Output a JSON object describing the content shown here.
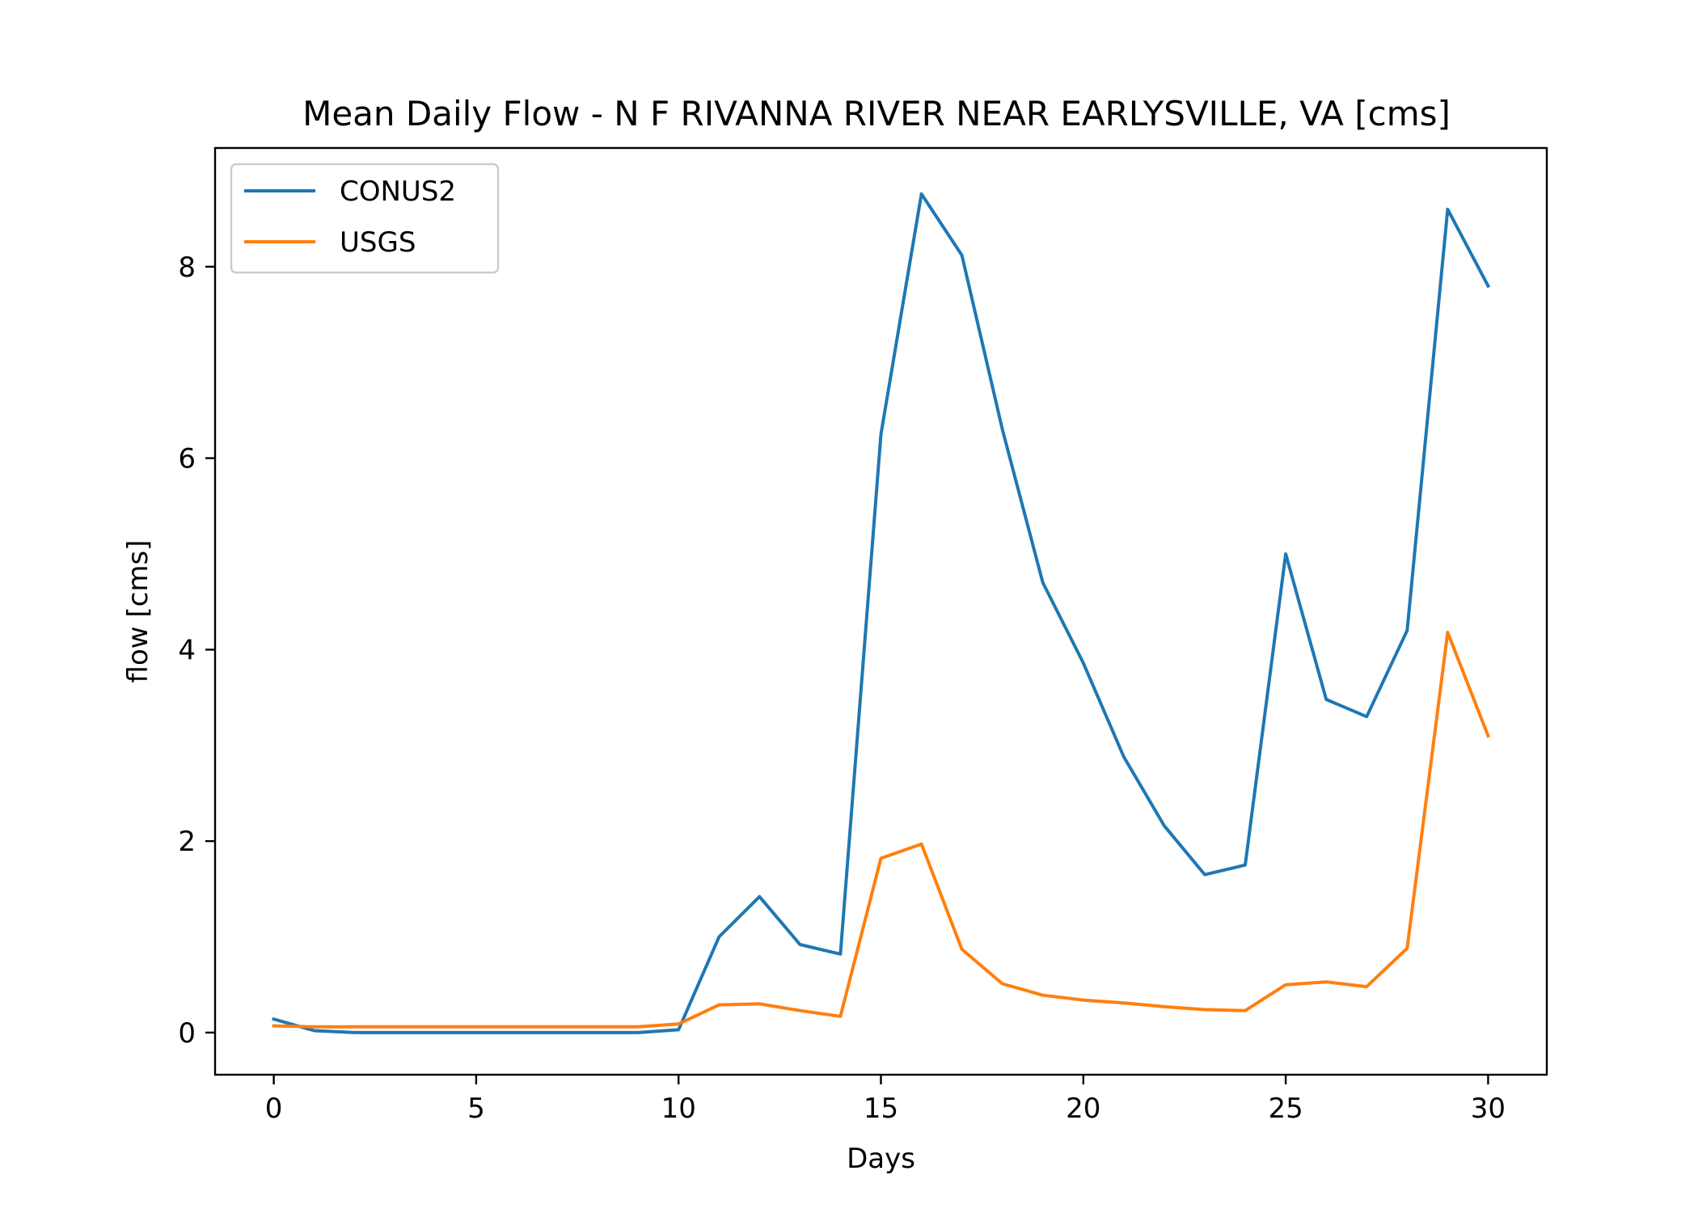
{
  "chart_data": {
    "type": "line",
    "title": "Mean Daily Flow - N F RIVANNA RIVER NEAR EARLYSVILLE, VA [cms]",
    "xlabel": "Days",
    "ylabel": "flow [cms]",
    "xlim": [
      -1.45,
      31.45
    ],
    "ylim": [
      -0.44,
      9.24
    ],
    "xticks": [
      0,
      5,
      10,
      15,
      20,
      25,
      30
    ],
    "yticks": [
      0,
      2,
      4,
      6,
      8
    ],
    "grid": false,
    "legend_position": "upper-left",
    "x": [
      0,
      1,
      2,
      3,
      4,
      5,
      6,
      7,
      8,
      9,
      10,
      11,
      12,
      13,
      14,
      15,
      16,
      17,
      18,
      19,
      20,
      21,
      22,
      23,
      24,
      25,
      26,
      27,
      28,
      29,
      30
    ],
    "series": [
      {
        "name": "CONUS2",
        "color": "#1f77b4",
        "values": [
          0.14,
          0.02,
          0.0,
          0.0,
          0.0,
          0.0,
          0.0,
          0.0,
          0.0,
          0.0,
          0.03,
          1.0,
          1.42,
          0.92,
          0.82,
          6.25,
          8.76,
          8.12,
          6.3,
          4.7,
          3.86,
          2.88,
          2.16,
          1.65,
          1.75,
          5.0,
          3.48,
          3.3,
          4.2,
          8.6,
          7.8
        ]
      },
      {
        "name": "USGS",
        "color": "#ff7f0e",
        "values": [
          0.07,
          0.06,
          0.06,
          0.06,
          0.06,
          0.06,
          0.06,
          0.06,
          0.06,
          0.06,
          0.09,
          0.29,
          0.3,
          0.23,
          0.17,
          1.82,
          1.97,
          0.87,
          0.51,
          0.39,
          0.34,
          0.31,
          0.27,
          0.24,
          0.23,
          0.5,
          0.53,
          0.48,
          0.88,
          4.18,
          3.1
        ]
      }
    ]
  }
}
